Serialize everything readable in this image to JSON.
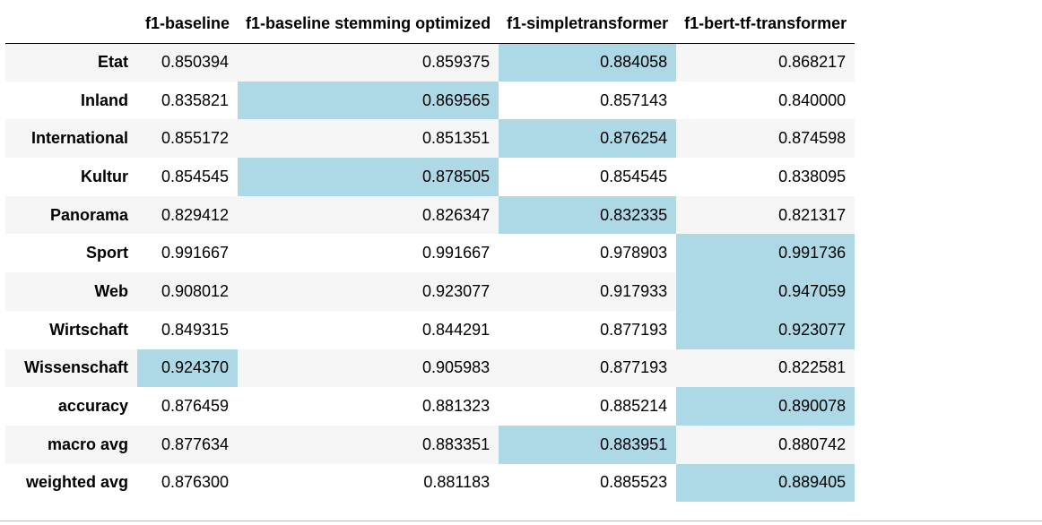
{
  "chart_data": {
    "type": "table",
    "columns": [
      "f1-baseline",
      "f1-baseline stemming optimized",
      "f1-simpletransformer",
      "f1-bert-tf-transformer"
    ],
    "rows": [
      {
        "label": "Etat",
        "values": [
          "0.850394",
          "0.859375",
          "0.884058",
          "0.868217"
        ],
        "highlight": 2
      },
      {
        "label": "Inland",
        "values": [
          "0.835821",
          "0.869565",
          "0.857143",
          "0.840000"
        ],
        "highlight": 1
      },
      {
        "label": "International",
        "values": [
          "0.855172",
          "0.851351",
          "0.876254",
          "0.874598"
        ],
        "highlight": 2
      },
      {
        "label": "Kultur",
        "values": [
          "0.854545",
          "0.878505",
          "0.854545",
          "0.838095"
        ],
        "highlight": 1
      },
      {
        "label": "Panorama",
        "values": [
          "0.829412",
          "0.826347",
          "0.832335",
          "0.821317"
        ],
        "highlight": 2
      },
      {
        "label": "Sport",
        "values": [
          "0.991667",
          "0.991667",
          "0.978903",
          "0.991736"
        ],
        "highlight": 3
      },
      {
        "label": "Web",
        "values": [
          "0.908012",
          "0.923077",
          "0.917933",
          "0.947059"
        ],
        "highlight": 3
      },
      {
        "label": "Wirtschaft",
        "values": [
          "0.849315",
          "0.844291",
          "0.877193",
          "0.923077"
        ],
        "highlight": 3
      },
      {
        "label": "Wissenschaft",
        "values": [
          "0.924370",
          "0.905983",
          "0.877193",
          "0.822581"
        ],
        "highlight": 0
      },
      {
        "label": "accuracy",
        "values": [
          "0.876459",
          "0.881323",
          "0.885214",
          "0.890078"
        ],
        "highlight": 3
      },
      {
        "label": "macro avg",
        "values": [
          "0.877634",
          "0.883351",
          "0.883951",
          "0.880742"
        ],
        "highlight": 2
      },
      {
        "label": "weighted avg",
        "values": [
          "0.876300",
          "0.881183",
          "0.885523",
          "0.889405"
        ],
        "highlight": 3
      }
    ],
    "highlight_color": "#add8e6",
    "stripe_color": "#f5f5f5"
  }
}
